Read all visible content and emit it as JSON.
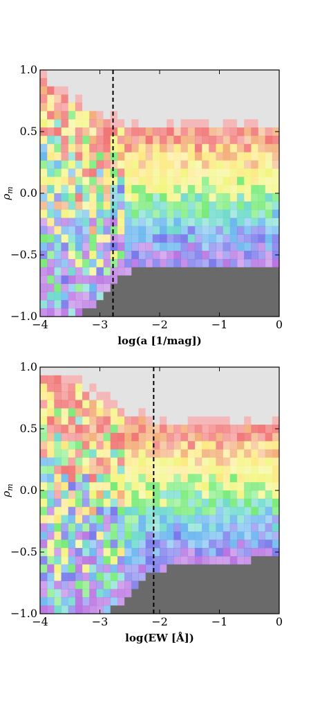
{
  "chart_data": [
    {
      "type": "heatmap",
      "xlabel": "log(a [1/mag])",
      "ylabel": "ρ_m",
      "xlim": [
        -4,
        0
      ],
      "ylim": [
        -1.0,
        1.0
      ],
      "xticks": [
        "−4",
        "−3",
        "−2",
        "−1",
        "0"
      ],
      "yticks": [
        "−1.0",
        "−0.5",
        "0.0",
        "0.5",
        "1.0"
      ],
      "cutoff_x": -2.78,
      "bins": {
        "nx": 34,
        "ny": 30
      },
      "empty_above_boundary_color": "#e3e3e3",
      "empty_below_boundary_color": "#6a6a6a",
      "color_bands_top_to_bottom": [
        "#f07070",
        "#f2ab74",
        "#fde87c",
        "#f2f47a",
        "#72ea72",
        "#68d8ca",
        "#66b4ee",
        "#7272ea",
        "#b56ee0"
      ],
      "boundaries": {
        "upper_at_x": [
          [
            -4,
            0.92
          ],
          [
            -3.4,
            0.72
          ],
          [
            -3.0,
            0.6
          ],
          [
            -2.6,
            0.53
          ],
          [
            -2.0,
            0.52
          ],
          [
            0,
            0.52
          ]
        ],
        "lower_at_x": [
          [
            -4,
            -1.0
          ],
          [
            -3.3,
            -0.98
          ],
          [
            -2.9,
            -0.82
          ],
          [
            -2.6,
            -0.66
          ],
          [
            -2.2,
            -0.6
          ],
          [
            0,
            -0.57
          ]
        ]
      }
    },
    {
      "type": "heatmap",
      "xlabel": "log(EW [Å])",
      "ylabel": "ρ_m",
      "xlim": [
        -4,
        0
      ],
      "ylim": [
        -1.0,
        1.0
      ],
      "xticks": [
        "−4",
        "−3",
        "−2",
        "−1",
        "0"
      ],
      "yticks": [
        "−1.0",
        "−0.5",
        "0.0",
        "0.5",
        "1.0"
      ],
      "cutoff_x": -2.1,
      "bins": {
        "nx": 34,
        "ny": 30
      },
      "empty_above_boundary_color": "#e3e3e3",
      "empty_below_boundary_color": "#6a6a6a",
      "color_bands_top_to_bottom": [
        "#f07070",
        "#f2ab74",
        "#fde87c",
        "#f2f47a",
        "#72ea72",
        "#68d8ca",
        "#66b4ee",
        "#7272ea",
        "#b56ee0"
      ],
      "boundaries": {
        "upper_at_x": [
          [
            -4,
            0.95
          ],
          [
            -3.4,
            0.85
          ],
          [
            -2.9,
            0.7
          ],
          [
            -2.5,
            0.6
          ],
          [
            -2.0,
            0.52
          ],
          [
            0,
            0.5
          ]
        ],
        "lower_at_x": [
          [
            -4,
            -1.0
          ],
          [
            -3.0,
            -1.0
          ],
          [
            -2.6,
            -0.9
          ],
          [
            -2.2,
            -0.7
          ],
          [
            -1.8,
            -0.62
          ],
          [
            0,
            -0.55
          ]
        ]
      }
    }
  ]
}
